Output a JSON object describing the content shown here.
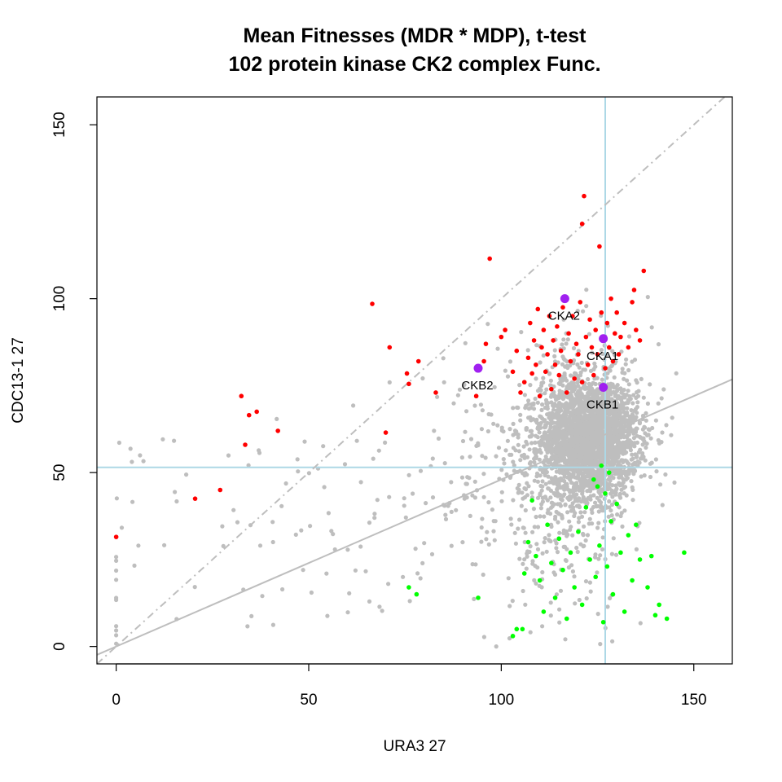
{
  "chart_data": {
    "type": "scatter",
    "title_line1": "Mean Fitnesses (MDR * MDP), t-test",
    "title_line2": "102 protein kinase CK2 complex  Func.",
    "xlabel": "URA3 27",
    "ylabel": "CDC13-1 27",
    "xlim": [
      -5,
      160
    ],
    "ylim": [
      -5,
      158
    ],
    "x_ticks": [
      0,
      50,
      100,
      150
    ],
    "y_ticks": [
      0,
      50,
      100,
      150
    ],
    "grid": false,
    "reference_lines": {
      "vertical_x": 127,
      "horizontal_y": 51.5,
      "diagonal_slope": 1,
      "fit_intercept": 0,
      "fit_slope": 0.48
    },
    "colors": {
      "neutral": "#bebebe",
      "suppressor": "#ff0000",
      "enhancer": "#00ff00",
      "highlight": "#a020f0",
      "reference": "#add8e6",
      "diagonal": "#bebebe"
    },
    "highlighted": [
      {
        "name": "CKA2",
        "x": 116.5,
        "y": 100
      },
      {
        "name": "CKA1",
        "x": 126.5,
        "y": 88.5
      },
      {
        "name": "CKB2",
        "x": 94,
        "y": 80
      },
      {
        "name": "CKB1",
        "x": 126.5,
        "y": 74.5
      }
    ],
    "red_points": [
      [
        0,
        31.5
      ],
      [
        20.5,
        42.5
      ],
      [
        27,
        45
      ],
      [
        32.5,
        72
      ],
      [
        33.5,
        58
      ],
      [
        34.5,
        66.5
      ],
      [
        36.5,
        67.5
      ],
      [
        42,
        62
      ],
      [
        66.5,
        98.5
      ],
      [
        70,
        61.5
      ],
      [
        71,
        86
      ],
      [
        75.5,
        78.5
      ],
      [
        76,
        75.5
      ],
      [
        78.5,
        82
      ],
      [
        83,
        73
      ],
      [
        93.5,
        72
      ],
      [
        95.5,
        82
      ],
      [
        96,
        87
      ],
      [
        97,
        111.5
      ],
      [
        100,
        89
      ],
      [
        101,
        91
      ],
      [
        103,
        79
      ],
      [
        104,
        85
      ],
      [
        105,
        73
      ],
      [
        106,
        76
      ],
      [
        107,
        83
      ],
      [
        107.5,
        93
      ],
      [
        108,
        78.5
      ],
      [
        108.5,
        88
      ],
      [
        109,
        81
      ],
      [
        109.5,
        97
      ],
      [
        110,
        72
      ],
      [
        110.5,
        86
      ],
      [
        111,
        91
      ],
      [
        111.5,
        79
      ],
      [
        112,
        84
      ],
      [
        112.5,
        95
      ],
      [
        113,
        74
      ],
      [
        113.5,
        88
      ],
      [
        114,
        81
      ],
      [
        114.5,
        92
      ],
      [
        115,
        78
      ],
      [
        115.5,
        85
      ],
      [
        116,
        97.5
      ],
      [
        117,
        73
      ],
      [
        117.5,
        90
      ],
      [
        118,
        82
      ],
      [
        118.5,
        95
      ],
      [
        119,
        77
      ],
      [
        119.5,
        87
      ],
      [
        120,
        84
      ],
      [
        120.5,
        99
      ],
      [
        121,
        76
      ],
      [
        121,
        121.5
      ],
      [
        121.5,
        129.5
      ],
      [
        122,
        89
      ],
      [
        122.5,
        81
      ],
      [
        123,
        94
      ],
      [
        123.5,
        86
      ],
      [
        124,
        78
      ],
      [
        124.5,
        91
      ],
      [
        125,
        84
      ],
      [
        125.5,
        115
      ],
      [
        126,
        96
      ],
      [
        127,
        80
      ],
      [
        127.5,
        93
      ],
      [
        128,
        86
      ],
      [
        128.5,
        100
      ],
      [
        129,
        82
      ],
      [
        129.5,
        90
      ],
      [
        130,
        96
      ],
      [
        130.5,
        84
      ],
      [
        131,
        89
      ],
      [
        132,
        93
      ],
      [
        133,
        86
      ],
      [
        134,
        99
      ],
      [
        134.5,
        102.5
      ],
      [
        135,
        91
      ],
      [
        136,
        88
      ],
      [
        137,
        108
      ]
    ],
    "green_points": [
      [
        76,
        17
      ],
      [
        78,
        15
      ],
      [
        94,
        14
      ],
      [
        103,
        3
      ],
      [
        104,
        5
      ],
      [
        105.5,
        5
      ],
      [
        106,
        21
      ],
      [
        107,
        30
      ],
      [
        108,
        42
      ],
      [
        109,
        26
      ],
      [
        110,
        19
      ],
      [
        111,
        10
      ],
      [
        112,
        35
      ],
      [
        113,
        24
      ],
      [
        114,
        14
      ],
      [
        115,
        31
      ],
      [
        116,
        22
      ],
      [
        117,
        8
      ],
      [
        118,
        27
      ],
      [
        119,
        17
      ],
      [
        120,
        33
      ],
      [
        121,
        12
      ],
      [
        122,
        40
      ],
      [
        123,
        25
      ],
      [
        124,
        48
      ],
      [
        124.5,
        20
      ],
      [
        125,
        46
      ],
      [
        125.5,
        29
      ],
      [
        126,
        52
      ],
      [
        126.5,
        7
      ],
      [
        127,
        44
      ],
      [
        127.5,
        23
      ],
      [
        128,
        50
      ],
      [
        128.5,
        36
      ],
      [
        129,
        15
      ],
      [
        130,
        41
      ],
      [
        131,
        27
      ],
      [
        132,
        10
      ],
      [
        133,
        32
      ],
      [
        134,
        19
      ],
      [
        135,
        35
      ],
      [
        136,
        25
      ],
      [
        138,
        17
      ],
      [
        139,
        26
      ],
      [
        140,
        9
      ],
      [
        141,
        12
      ],
      [
        143,
        8
      ],
      [
        147.5,
        27
      ]
    ]
  }
}
